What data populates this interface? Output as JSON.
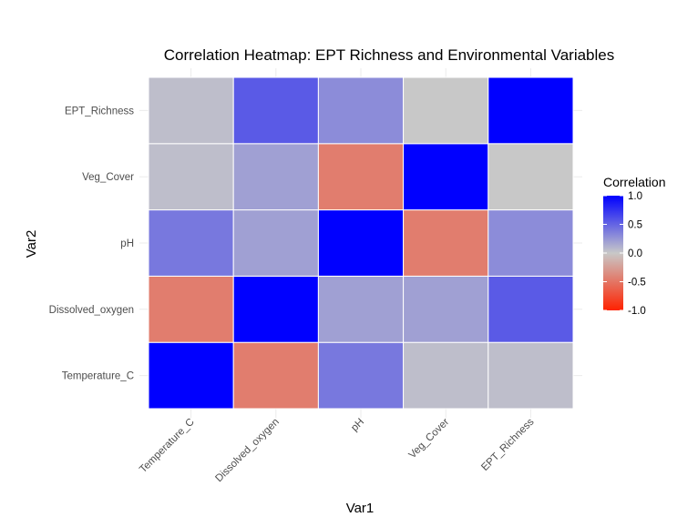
{
  "chart_data": {
    "type": "heatmap",
    "title": "Correlation Heatmap: EPT Richness and Environmental Variables",
    "xlabel": "Var1",
    "ylabel": "Var2",
    "x_categories": [
      "Temperature_C",
      "Dissolved_oxygen",
      "pH",
      "Veg_Cover",
      "EPT_Richness"
    ],
    "y_categories": [
      "Temperature_C",
      "Dissolved_oxygen",
      "pH",
      "Veg_Cover",
      "EPT_Richness"
    ],
    "values": [
      [
        1.0,
        -0.45,
        0.4,
        0.05,
        0.05
      ],
      [
        -0.45,
        1.0,
        0.2,
        0.2,
        0.55
      ],
      [
        0.4,
        0.2,
        1.0,
        -0.45,
        0.3
      ],
      [
        0.05,
        0.2,
        -0.45,
        1.0,
        0.0
      ],
      [
        0.05,
        0.55,
        0.3,
        0.0,
        1.0
      ]
    ],
    "value_range": [
      -1,
      1
    ],
    "legend": {
      "title": "Correlation",
      "position": "right",
      "ticks": [
        1.0,
        0.5,
        0.0,
        -0.5,
        -1.0
      ],
      "tick_labels": [
        "1.0",
        "0.5",
        "0.0",
        "-0.5",
        "-1.0"
      ],
      "low_color": "#ff2200",
      "mid_color": "#c8c8c8",
      "high_color": "#0000ff"
    },
    "grid": true
  }
}
